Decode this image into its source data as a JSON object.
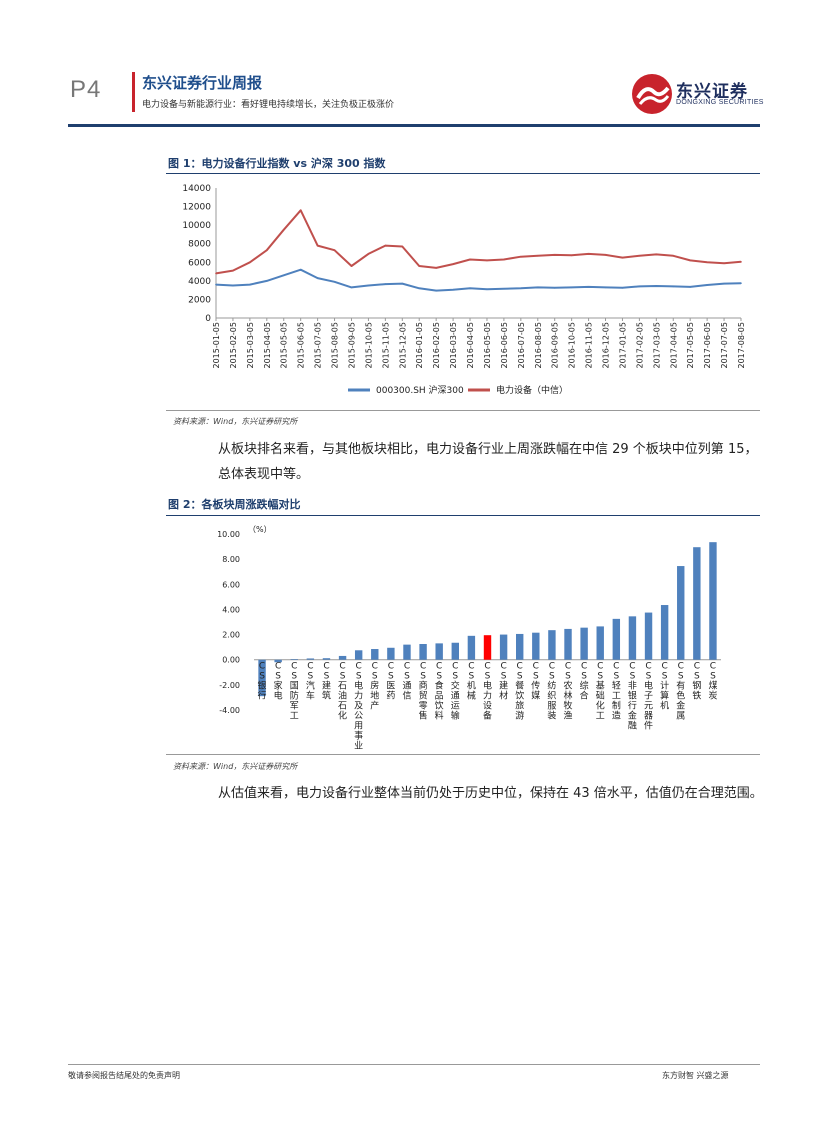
{
  "header": {
    "page_number": "P4",
    "title": "东兴证券行业周报",
    "subtitle": "电力设备与新能源行业：看好锂电持续增长，关注负极正极涨价",
    "logo_name": "东兴证券",
    "logo_en": "DONGXING SECURITIES",
    "accent_color": "#c8232c",
    "brand_color": "#1f3f6e"
  },
  "figure1": {
    "title": "图 1：电力设备行业指数 vs 沪深 300 指数",
    "source": "资料来源：Wind，东兴证券研究所"
  },
  "paragraph1": "从板块排名来看，与其他板块相比，电力设备行业上周涨跌幅在中信 29 个板块中位列第 15，总体表现中等。",
  "figure2": {
    "title": "图 2：各板块周涨跌幅对比",
    "source": "资料来源：Wind，东兴证券研究所"
  },
  "paragraph2": "从估值来看，电力设备行业整体当前仍处于历史中位，保持在 43 倍水平，估值仍在合理范围。",
  "footer": {
    "left": "敬请参阅报告结尾处的免责声明",
    "right": "东方财智 兴盛之源"
  },
  "chart_data": [
    {
      "type": "line",
      "x": [
        "2015-01-05",
        "2015-02-05",
        "2015-03-05",
        "2015-04-05",
        "2015-05-05",
        "2015-06-05",
        "2015-07-05",
        "2015-08-05",
        "2015-09-05",
        "2015-10-05",
        "2015-11-05",
        "2015-12-05",
        "2016-01-05",
        "2016-02-05",
        "2016-03-05",
        "2016-04-05",
        "2016-05-05",
        "2016-06-05",
        "2016-07-05",
        "2016-08-05",
        "2016-09-05",
        "2016-10-05",
        "2016-11-05",
        "2016-12-05",
        "2017-01-05",
        "2017-02-05",
        "2017-03-05",
        "2017-04-05",
        "2017-05-05",
        "2017-06-05",
        "2017-07-05",
        "2017-08-05"
      ],
      "ylim": [
        0,
        14000
      ],
      "yticks": [
        "0",
        "2000",
        "4000",
        "6000",
        "8000",
        "10000",
        "12000",
        "14000"
      ],
      "legend_position": "bottom",
      "series": [
        {
          "name": "000300.SH 沪深300",
          "color": "#4f81bd",
          "values": [
            3600,
            3500,
            3600,
            4000,
            4600,
            5200,
            4300,
            3900,
            3300,
            3500,
            3650,
            3700,
            3200,
            2950,
            3050,
            3200,
            3100,
            3150,
            3200,
            3300,
            3250,
            3300,
            3350,
            3300,
            3250,
            3400,
            3450,
            3400,
            3350,
            3550,
            3700,
            3750
          ]
        },
        {
          "name": "电力设备（中信）",
          "color": "#c0504d",
          "values": [
            4800,
            5100,
            6000,
            7300,
            9500,
            11600,
            7800,
            7300,
            5600,
            6900,
            7800,
            7700,
            5600,
            5400,
            5800,
            6300,
            6200,
            6300,
            6600,
            6700,
            6800,
            6750,
            6900,
            6800,
            6500,
            6700,
            6850,
            6700,
            6200,
            6000,
            5900,
            6050
          ]
        }
      ]
    },
    {
      "type": "bar",
      "ylabel": "（%）",
      "ylim": [
        -4,
        10
      ],
      "yticks": [
        "10.00",
        "8.00",
        "6.00",
        "4.00",
        "2.00",
        "0.00",
        "-2.00",
        "-4.00"
      ],
      "highlight_color": "#ff0000",
      "bar_color": "#4f81bd",
      "categories": [
        "CS银行",
        "CS家电",
        "CS国防军工",
        "CS汽车",
        "CS建筑",
        "CS石油石化",
        "CS电力及公用事业",
        "CS房地产",
        "CS医药",
        "CS通信",
        "CS商贸零售",
        "CS食品饮料",
        "CS交通运输",
        "CS机械",
        "CS电力设备",
        "CS建材",
        "CS餐饮旅游",
        "CS传媒",
        "CS纺织服装",
        "CS农林牧渔",
        "CS综合",
        "CS基础化工",
        "CS轻工制造",
        "CS非银行金融",
        "CS电子元器件",
        "CS计算机",
        "CS有色金属",
        "CS钢铁",
        "CS煤炭"
      ],
      "values": [
        -2.9,
        -0.2,
        0.05,
        0.1,
        0.12,
        0.3,
        0.75,
        0.85,
        0.95,
        1.2,
        1.25,
        1.3,
        1.35,
        1.9,
        1.95,
        2.0,
        2.05,
        2.15,
        2.35,
        2.45,
        2.55,
        2.65,
        3.25,
        3.45,
        3.75,
        4.35,
        7.45,
        8.95,
        9.35
      ],
      "highlight_index": 14
    }
  ]
}
